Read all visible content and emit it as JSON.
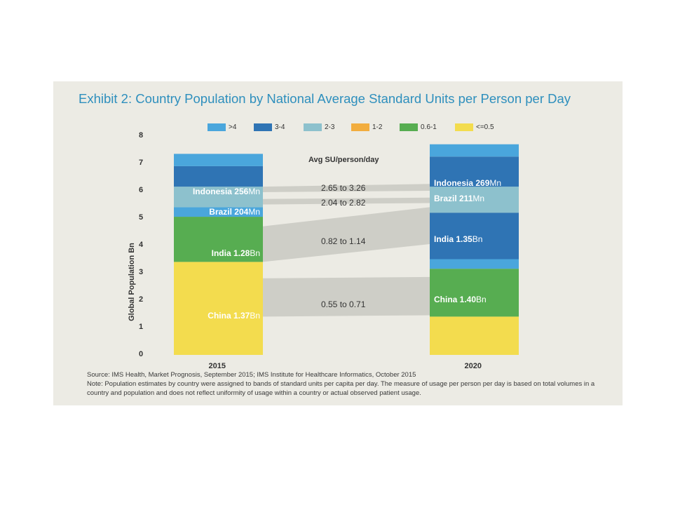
{
  "title": "Exhibit 2: Country Population by National Average Standard Units per Person per Day",
  "colors": {
    "gt4": "#4aa6dc",
    "b3_4": "#2f74b4",
    "b2_3": "#8dc1cd",
    "b1_2": "#f2ad3e",
    "b06_1": "#57ad51",
    "le05": "#f3dc4e",
    "flow": "#c9c9c2"
  },
  "legend": [
    {
      "label": ">4",
      "color": "#4aa6dc"
    },
    {
      "label": "3-4",
      "color": "#2f74b4"
    },
    {
      "label": "2-3",
      "color": "#8dc1cd"
    },
    {
      "label": "1-2",
      "color": "#f2ad3e"
    },
    {
      "label": "0.6-1",
      "color": "#57ad51"
    },
    {
      "label": "<=0.5",
      "color": "#f3dc4e"
    }
  ],
  "chart_data": {
    "type": "bar",
    "stacked": true,
    "categories": [
      "2015",
      "2020"
    ],
    "ylabel": "Global Population Bn",
    "ylim": [
      0,
      8
    ],
    "yticks": [
      "0",
      "1",
      "2",
      "3",
      "4",
      "5",
      "6",
      "7",
      "8"
    ],
    "segments": {
      "2015": [
        {
          "band": "<=0.5",
          "value": 3.4,
          "color": "#f3dc4e"
        },
        {
          "band": "0.6-1",
          "value": 1.65,
          "color": "#57ad51"
        },
        {
          "band": ">4",
          "value": 0.35,
          "color": "#4aa6dc"
        },
        {
          "band": "2-3",
          "value": 0.75,
          "color": "#8dc1cd"
        },
        {
          "band": "3-4",
          "value": 0.75,
          "color": "#2f74b4"
        },
        {
          "band": ">4",
          "value": 0.45,
          "color": "#4aa6dc"
        }
      ],
      "2020": [
        {
          "band": "<=0.5",
          "value": 1.4,
          "color": "#f3dc4e"
        },
        {
          "band": "0.6-1",
          "value": 1.75,
          "color": "#57ad51"
        },
        {
          "band": ">4",
          "value": 0.35,
          "color": "#4aa6dc"
        },
        {
          "band": "3-4",
          "value": 1.7,
          "color": "#2f74b4"
        },
        {
          "band": "2-3",
          "value": 0.95,
          "color": "#8dc1cd"
        },
        {
          "band": "3-4",
          "value": 1.1,
          "color": "#2f74b4"
        },
        {
          "band": ">4",
          "value": 0.45,
          "color": "#4aa6dc"
        }
      ]
    },
    "flows": [
      {
        "label": "2.65 to 3.26",
        "from": [
          5.95,
          6.15
        ],
        "to": [
          6.0,
          6.25
        ]
      },
      {
        "label": "2.04 to 2.82",
        "from": [
          5.5,
          5.7
        ],
        "to": [
          5.55,
          5.75
        ]
      },
      {
        "label": "0.82 to 1.14",
        "from": [
          3.4,
          4.7
        ],
        "to": [
          4.05,
          5.4
        ]
      },
      {
        "label": "0.55 to 0.71",
        "from": [
          1.4,
          2.8
        ],
        "to": [
          1.45,
          2.85
        ]
      }
    ],
    "country_labels": {
      "2015": [
        {
          "name": "Indonesia",
          "value": "256",
          "unit": "Mn",
          "y": 5.95
        },
        {
          "name": "Brazil",
          "value": "204",
          "unit": "Mn",
          "y": 5.2
        },
        {
          "name": "India",
          "value": "1.28",
          "unit": "Bn",
          "y": 3.7
        },
        {
          "name": "China",
          "value": "1.37",
          "unit": "Bn",
          "y": 1.4
        }
      ],
      "2020": [
        {
          "name": "Indonesia",
          "value": "269",
          "unit": "Mn",
          "y": 6.25
        },
        {
          "name": "Brazil",
          "value": "211",
          "unit": "Mn",
          "y": 5.7
        },
        {
          "name": "India",
          "value": "1.35",
          "unit": "Bn",
          "y": 4.2
        },
        {
          "name": "China",
          "value": "1.40",
          "unit": "Bn",
          "y": 2.0
        }
      ]
    }
  },
  "avg_label": "Avg SU/person/day",
  "source": "Source: IMS Health, Market Prognosis, September 2015; IMS Institute for Healthcare Informatics, October 2015",
  "note_line1": "Note: Population estimates by country were assigned to bands of standard units per capita per day. The measure of usage per person per day is based on total volumes in a",
  "note_line2": "country and population and does not reflect uniformity of usage within a country or actual observed patient usage."
}
